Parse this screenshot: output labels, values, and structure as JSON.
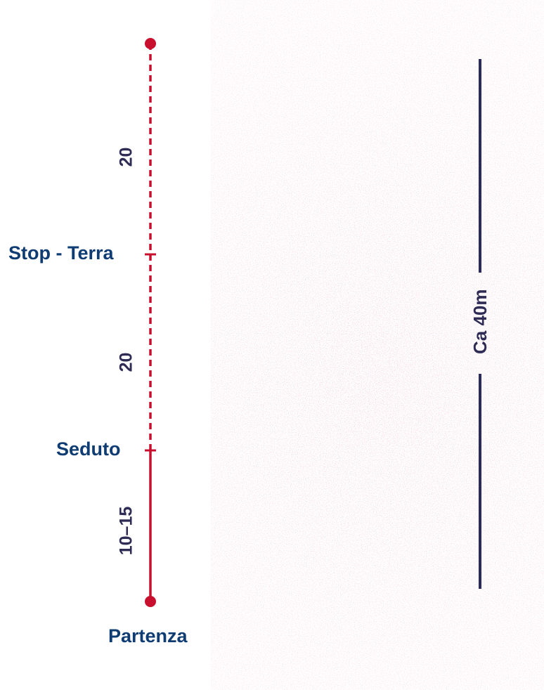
{
  "colors": {
    "route_line": "#c8102e",
    "label_text": "#0f3c73",
    "segment_text": "#2e2c55",
    "measure_line": "#2b2a5c"
  },
  "route": {
    "waypoints": {
      "stop_terra": "Stop - Terra",
      "seduto": "Seduto",
      "partenza": "Partenza"
    },
    "segments": {
      "upper": "20",
      "middle": "20",
      "lower": "10–15"
    }
  },
  "measure": {
    "label": "Ca 40m"
  }
}
